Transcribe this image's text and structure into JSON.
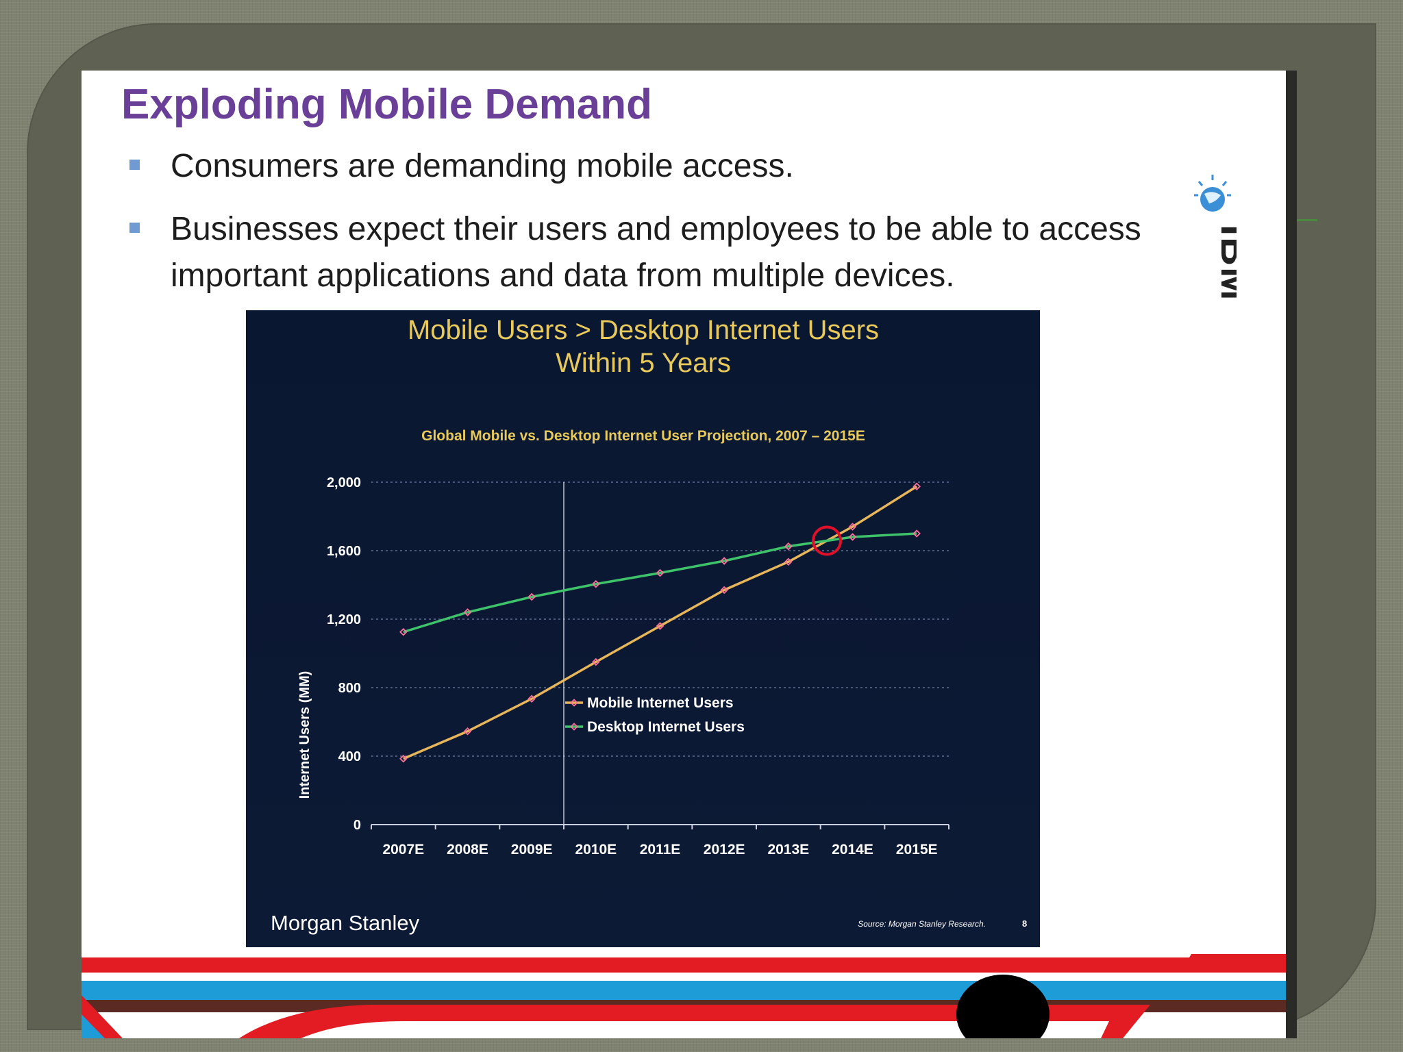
{
  "slide": {
    "title": "Exploding Mobile Demand",
    "bullets": [
      "Consumers are demanding mobile access.",
      "Businesses expect their users and employees to be able to access important applications and data from multiple devices."
    ],
    "logo": "IBM"
  },
  "chart_panel": {
    "headline_line1": "Mobile Users > Desktop Internet Users",
    "headline_line2": "Within 5 Years",
    "brand": "Morgan Stanley",
    "source": "Source: Morgan Stanley Research.",
    "page_number": "8"
  },
  "colors": {
    "title": "#6a3f97",
    "headline": "#e8c95a",
    "mobile": "#e8b65a",
    "desktop": "#3ec36b",
    "marker": "#ff6f9a",
    "highlight_circle": "#e0102a"
  },
  "chart_data": {
    "type": "line",
    "title": "Global Mobile vs. Desktop Internet User Projection, 2007 – 2015E",
    "xlabel": "",
    "ylabel": "Internet Users (MM)",
    "categories": [
      "2007E",
      "2008E",
      "2009E",
      "2010E",
      "2011E",
      "2012E",
      "2013E",
      "2014E",
      "2015E"
    ],
    "ylim": [
      0,
      2000
    ],
    "yticks": [
      0,
      400,
      800,
      1200,
      1600,
      2000
    ],
    "ytick_labels": [
      "0",
      "400",
      "800",
      "1,200",
      "1,600",
      "2,000"
    ],
    "series": [
      {
        "name": "Mobile Internet Users",
        "values": [
          385,
          545,
          735,
          950,
          1160,
          1370,
          1535,
          1740,
          1975
        ]
      },
      {
        "name": "Desktop Internet Users",
        "values": [
          1125,
          1240,
          1330,
          1405,
          1470,
          1540,
          1625,
          1680,
          1700
        ]
      }
    ],
    "grid": "horizontal dotted",
    "vertical_marker_after": "2009E",
    "crossover_highlight": "between 2013E and 2014E",
    "legend_position": "lower-middle"
  }
}
